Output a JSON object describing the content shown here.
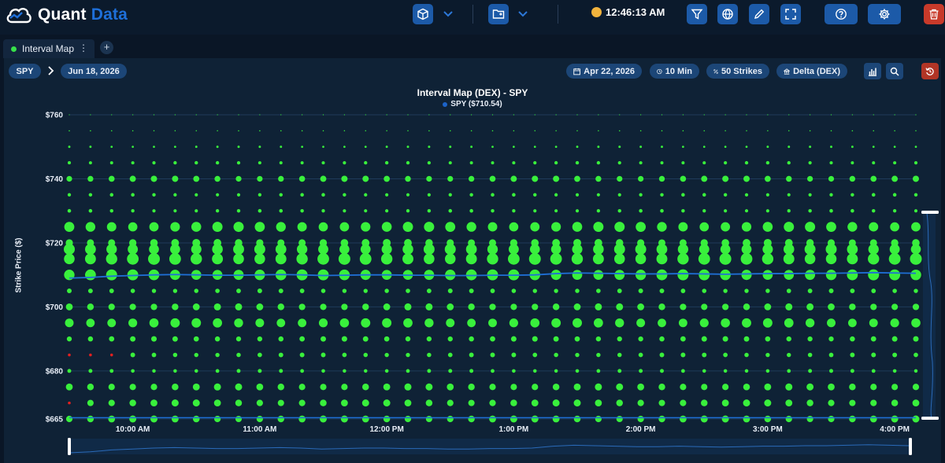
{
  "brand": {
    "name_part1": "Quant",
    "name_part2": "Data"
  },
  "header": {
    "time": "12:46:13 AM",
    "icons": [
      "cube-icon",
      "folder-sync-icon",
      "filter-icon",
      "globe-icon",
      "pencil-icon",
      "fullscreen-icon",
      "help-icon",
      "gear-icon",
      "trash-icon"
    ]
  },
  "tabs": [
    {
      "label": "Interval Map",
      "active": true
    }
  ],
  "toolbar": {
    "ticker": "SPY",
    "expiry": "Jun 18, 2026",
    "date": "Apr 22, 2026",
    "interval": "10 Min",
    "strikes": "50 Strikes",
    "metric": "Delta (DEX)"
  },
  "chart_data": {
    "type": "scatter",
    "title": "Interval Map (DEX) - SPY",
    "legend": "SPY ($710.54)",
    "ylabel": "Strike Price ($)",
    "ylim": [
      665,
      760
    ],
    "y_ticks": [
      "$760",
      "$740",
      "$720",
      "$700",
      "$680",
      "$665"
    ],
    "y_tick_values": [
      760,
      740,
      720,
      700,
      680,
      665
    ],
    "x_ticks": [
      "10:00 AM",
      "11:00 AM",
      "12:00 PM",
      "1:00 PM",
      "2:00 PM",
      "3:00 PM",
      "4:00 PM"
    ],
    "x_tick_minutes": [
      600,
      660,
      720,
      780,
      840,
      900,
      960
    ],
    "xlim_minutes": [
      570,
      970
    ],
    "interval_minutes": 10,
    "first_interval_minute": 570,
    "num_intervals": 41,
    "bubble_color": "#39f03c",
    "negative_color": "#e32020",
    "price_line_color": "#1f6fd6",
    "strikes": [
      {
        "strike": 760,
        "size": 0.5
      },
      {
        "strike": 755,
        "size": 0.8
      },
      {
        "strike": 750,
        "size": 1.5
      },
      {
        "strike": 745,
        "size": 2.2
      },
      {
        "strike": 740,
        "size": 4.0
      },
      {
        "strike": 735,
        "size": 2.3
      },
      {
        "strike": 730,
        "size": 2.3
      },
      {
        "strike": 725,
        "size": 6.5
      },
      {
        "strike": 720,
        "size": 5.0
      },
      {
        "strike": 718,
        "size": 7.0
      },
      {
        "strike": 715,
        "size": 7.5
      },
      {
        "strike": 710,
        "size": 7.0
      },
      {
        "strike": 705,
        "size": 3.0
      },
      {
        "strike": 700,
        "size": 4.5
      },
      {
        "strike": 695,
        "size": 6.0
      },
      {
        "strike": 690,
        "size": 3.5
      },
      {
        "strike": 685,
        "size": 3.0
      },
      {
        "strike": 680,
        "size": 2.5
      },
      {
        "strike": 675,
        "size": 4.5
      },
      {
        "strike": 670,
        "size": 4.5
      },
      {
        "strike": 665,
        "size": 4.5
      }
    ],
    "negative_points": [
      {
        "interval": 0,
        "strike": 685
      },
      {
        "interval": 1,
        "strike": 685
      },
      {
        "interval": 2,
        "strike": 685
      },
      {
        "interval": 0,
        "strike": 670
      }
    ],
    "price_series": [
      709.0,
      709.2,
      709.6,
      709.8,
      710.0,
      710.1,
      710.0,
      709.9,
      709.9,
      710.0,
      710.1,
      710.0,
      709.8,
      709.9,
      710.0,
      710.0,
      709.9,
      709.9,
      709.8,
      709.8,
      709.9,
      709.9,
      710.0,
      710.4,
      710.6,
      710.5,
      710.4,
      710.3,
      710.3,
      710.4,
      710.3,
      710.2,
      710.3,
      710.4,
      710.4,
      710.5,
      710.5,
      710.6,
      710.7,
      710.6,
      710.5
    ],
    "low_price_line": 665.4
  }
}
